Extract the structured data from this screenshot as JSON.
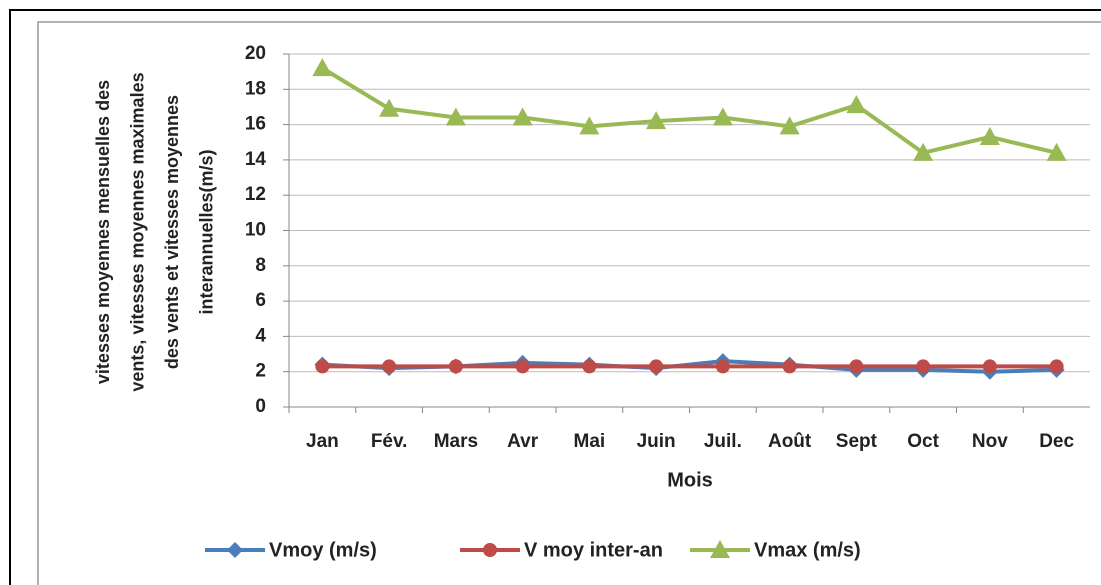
{
  "chart_data": {
    "type": "line",
    "ylabel": [
      "vitesses moyennes mensuelles des",
      "vents, vitesses moyennes maximales",
      "des vents et vitesses moyennes",
      "interannuelles(m/s)"
    ],
    "xlabel": "Mois",
    "categories": [
      "Jan",
      "Fév.",
      "Mars",
      "Avr",
      "Mai",
      "Juin",
      "Juil.",
      "Août",
      "Sept",
      "Oct",
      "Nov",
      "Dec"
    ],
    "series": [
      {
        "name": "Vmoy (m/s)",
        "color": "#4a7ebb",
        "marker": "diamond",
        "values": [
          2.4,
          2.2,
          2.3,
          2.5,
          2.4,
          2.2,
          2.6,
          2.4,
          2.1,
          2.1,
          2.0,
          2.1
        ]
      },
      {
        "name": "V moy inter-an",
        "color": "#be4b48",
        "marker": "circle",
        "values": [
          2.3,
          2.3,
          2.3,
          2.3,
          2.3,
          2.3,
          2.3,
          2.3,
          2.3,
          2.3,
          2.3,
          2.3
        ]
      },
      {
        "name": "Vmax (m/s)",
        "color": "#98b954",
        "marker": "triangle",
        "values": [
          19.2,
          16.9,
          16.4,
          16.4,
          15.9,
          16.2,
          16.4,
          15.9,
          17.1,
          14.4,
          15.3,
          14.4
        ]
      }
    ],
    "ylim": [
      0,
      20
    ],
    "yticks": [
      0,
      2,
      4,
      6,
      8,
      10,
      12,
      14,
      16,
      18,
      20
    ],
    "grid": true,
    "legend": "bottom"
  }
}
